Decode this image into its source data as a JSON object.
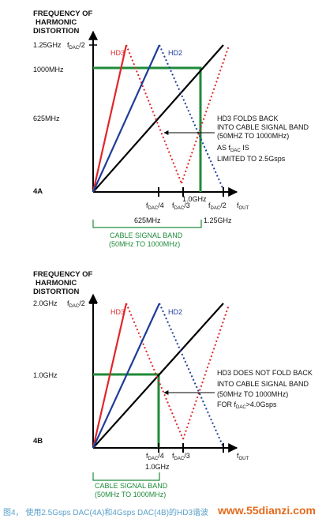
{
  "top": {
    "ylabel_lines": [
      "FREQUENCY OF",
      "HARMONIC",
      "DISTORTION"
    ],
    "y_ticks": {
      "top": "1.25GHz",
      "fdac2": "f",
      "fdac2_sub": "DAC",
      "fdac2_tail": "/2",
      "mid1": "1000MHz",
      "mid2": "625MHz"
    },
    "panel_label": "4A",
    "hd3": "HD3",
    "hd2": "HD2",
    "annotation": [
      "HD3 FOLDS BACK",
      "INTO CABLE SIGNAL BAND",
      "(50MHZ TO 1000MHz)",
      "AS f",
      "DAC",
      " IS",
      "LIMITED TO 2.5Gsps"
    ],
    "x_ticks": {
      "f": "f",
      "dac": "DAC",
      "q4": "/4",
      "q3": "/3",
      "q2": "/2",
      "fout": "f",
      "out": "OUT",
      "g10": "1.0GHz",
      "m625": "625MHz",
      "g125": "1.25GHz"
    },
    "band_label": [
      "CABLE SIGNAL BAND",
      "(50MHz TO 1000MHz)"
    ]
  },
  "bottom": {
    "ylabel_lines": [
      "FREQUENCY OF",
      "HARMONIC",
      "DISTORTION"
    ],
    "y_ticks": {
      "top": "2.0GHz",
      "mid1": "1.0GHz"
    },
    "panel_label": "4B",
    "hd3": "HD3",
    "hd2": "HD2",
    "annotation": [
      "HD3 DOES NOT FOLD BACK",
      "INTO CABLE SIGNAL BAND",
      "(50MHz TO 1000MHz)",
      "FOR f",
      "DAC",
      ">4.0Gsps"
    ],
    "x_ticks": {
      "g10": "1.0GHz"
    },
    "band_label": [
      "CABLE SIGNAL BAND",
      "(50MHz TO 1000MHz)"
    ]
  },
  "caption": "图4，  使用2.5Gsps DAC(4A)和4Gsps DAC(4B)的HD3谐波",
  "watermark": "www.55dianzi.com",
  "colors": {
    "hd3": "#e0262b",
    "hd2": "#1f3c9b",
    "fundamental": "#000000",
    "band": "#1f8a3a"
  }
}
